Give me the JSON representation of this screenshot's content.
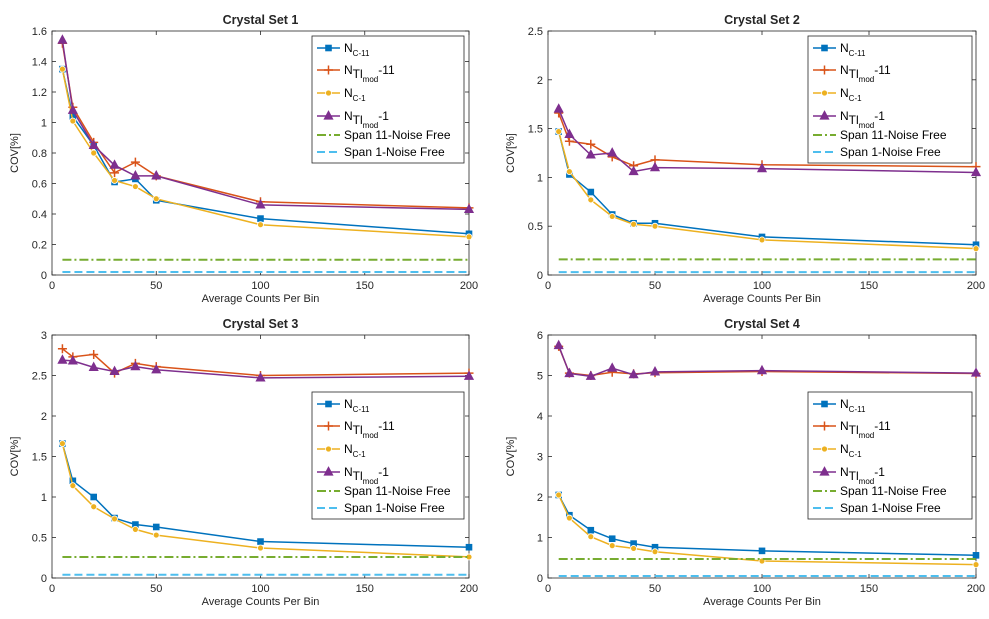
{
  "chart_data": [
    {
      "type": "line",
      "title": "Crystal Set 1",
      "xlabel": "Average Counts Per Bin",
      "ylabel": "COV[%]",
      "xlim": [
        0,
        200
      ],
      "ylim": [
        0,
        1.6
      ],
      "xticks": [
        "0",
        "50",
        "100",
        "150",
        "200"
      ],
      "yticks": [
        "0",
        "0.2",
        "0.4",
        "0.6",
        "0.8",
        "1",
        "1.2",
        "1.4",
        "1.6"
      ],
      "x": [
        5,
        10,
        20,
        30,
        40,
        50,
        100,
        200
      ],
      "legend_position": "top-right",
      "series": [
        {
          "id": "nc11",
          "name": "N_C-11",
          "values": [
            1.35,
            1.04,
            0.85,
            0.61,
            0.63,
            0.49,
            0.37,
            0.27
          ]
        },
        {
          "id": "ntl11",
          "name": "N_Tl_mod-11",
          "values": [
            1.52,
            1.1,
            0.87,
            0.67,
            0.74,
            0.65,
            0.48,
            0.44
          ]
        },
        {
          "id": "nc1",
          "name": "N_C-1",
          "values": [
            1.35,
            1.01,
            0.8,
            0.62,
            0.58,
            0.5,
            0.33,
            0.25
          ]
        },
        {
          "id": "ntl1",
          "name": "N_Tl_mod-1",
          "values": [
            1.54,
            1.08,
            0.85,
            0.72,
            0.65,
            0.65,
            0.46,
            0.43
          ]
        },
        {
          "id": "span11",
          "name": "Span 11-Noise Free",
          "style": "dashdot",
          "constant": 0.1
        },
        {
          "id": "span1",
          "name": "Span 1-Noise Free",
          "style": "dash",
          "constant": 0.02
        }
      ]
    },
    {
      "type": "line",
      "title": "Crystal Set 2",
      "xlabel": "Average Counts Per Bin",
      "ylabel": "COV[%]",
      "xlim": [
        0,
        200
      ],
      "ylim": [
        0,
        2.5
      ],
      "xticks": [
        "0",
        "50",
        "100",
        "150",
        "200"
      ],
      "yticks": [
        "0",
        "0.5",
        "1",
        "1.5",
        "2",
        "2.5"
      ],
      "x": [
        5,
        10,
        20,
        30,
        40,
        50,
        100,
        200
      ],
      "legend_position": "top-right",
      "series": [
        {
          "id": "nc11",
          "name": "N_C-11",
          "values": [
            1.47,
            1.03,
            0.85,
            0.62,
            0.53,
            0.53,
            0.39,
            0.31
          ]
        },
        {
          "id": "ntl11",
          "name": "N_Tl_mod-11",
          "values": [
            1.66,
            1.37,
            1.34,
            1.21,
            1.12,
            1.18,
            1.13,
            1.11
          ]
        },
        {
          "id": "nc1",
          "name": "N_C-1",
          "values": [
            1.47,
            1.06,
            0.77,
            0.6,
            0.52,
            0.5,
            0.36,
            0.27
          ]
        },
        {
          "id": "ntl1",
          "name": "N_Tl_mod-1",
          "values": [
            1.7,
            1.44,
            1.23,
            1.25,
            1.06,
            1.1,
            1.09,
            1.05
          ]
        },
        {
          "id": "span11",
          "name": "Span 11-Noise Free",
          "style": "dashdot",
          "constant": 0.16
        },
        {
          "id": "span1",
          "name": "Span 1-Noise Free",
          "style": "dash",
          "constant": 0.03
        }
      ]
    },
    {
      "type": "line",
      "title": "Crystal Set 3",
      "xlabel": "Average Counts Per Bin",
      "ylabel": "COV[%]",
      "xlim": [
        0,
        200
      ],
      "ylim": [
        0,
        3
      ],
      "xticks": [
        "0",
        "50",
        "100",
        "150",
        "200"
      ],
      "yticks": [
        "0",
        "0.5",
        "1",
        "1.5",
        "2",
        "2.5",
        "3"
      ],
      "x": [
        5,
        10,
        20,
        30,
        40,
        50,
        100,
        200
      ],
      "legend_position": "right",
      "series": [
        {
          "id": "nc11",
          "name": "N_C-11",
          "values": [
            1.66,
            1.2,
            1.0,
            0.74,
            0.66,
            0.63,
            0.45,
            0.38
          ]
        },
        {
          "id": "ntl11",
          "name": "N_Tl_mod-11",
          "values": [
            2.83,
            2.73,
            2.76,
            2.53,
            2.65,
            2.61,
            2.5,
            2.53
          ]
        },
        {
          "id": "nc1",
          "name": "N_C-1",
          "values": [
            1.66,
            1.14,
            0.88,
            0.73,
            0.6,
            0.53,
            0.37,
            0.26
          ]
        },
        {
          "id": "ntl1",
          "name": "N_Tl_mod-1",
          "values": [
            2.69,
            2.68,
            2.6,
            2.55,
            2.61,
            2.57,
            2.47,
            2.49
          ]
        },
        {
          "id": "span11",
          "name": "Span 11-Noise Free",
          "style": "dashdot",
          "constant": 0.26
        },
        {
          "id": "span1",
          "name": "Span 1-Noise Free",
          "style": "dash",
          "constant": 0.04
        }
      ]
    },
    {
      "type": "line",
      "title": "Crystal Set 4",
      "xlabel": "Average Counts Per Bin",
      "ylabel": "COV[%]",
      "xlim": [
        0,
        200
      ],
      "ylim": [
        0,
        6
      ],
      "xticks": [
        "0",
        "50",
        "100",
        "150",
        "200"
      ],
      "yticks": [
        "0",
        "1",
        "2",
        "3",
        "4",
        "5",
        "6"
      ],
      "x": [
        5,
        10,
        20,
        30,
        40,
        50,
        100,
        200
      ],
      "legend_position": "right",
      "series": [
        {
          "id": "nc11",
          "name": "N_C-11",
          "values": [
            2.05,
            1.55,
            1.18,
            0.97,
            0.85,
            0.76,
            0.67,
            0.56
          ]
        },
        {
          "id": "ntl11",
          "name": "N_Tl_mod-11",
          "values": [
            5.72,
            5.06,
            5.0,
            5.08,
            5.04,
            5.07,
            5.1,
            5.05
          ]
        },
        {
          "id": "nc1",
          "name": "N_C-1",
          "values": [
            2.05,
            1.48,
            1.02,
            0.8,
            0.73,
            0.65,
            0.42,
            0.33
          ]
        },
        {
          "id": "ntl1",
          "name": "N_Tl_mod-1",
          "values": [
            5.74,
            5.05,
            4.98,
            5.18,
            5.02,
            5.09,
            5.12,
            5.06
          ]
        },
        {
          "id": "span11",
          "name": "Span 11-Noise Free",
          "style": "dashdot",
          "constant": 0.47
        },
        {
          "id": "span1",
          "name": "Span 1-Noise Free",
          "style": "dash",
          "constant": 0.05
        }
      ]
    }
  ],
  "colors": {
    "nc11": "#0072BD",
    "ntl11": "#D95319",
    "nc1": "#EDB120",
    "ntl1": "#7E2F8E",
    "span11": "#77AC30",
    "span1": "#4DBEEE",
    "axis": "#262626"
  },
  "markers": {
    "nc11": "square",
    "ntl11": "plus",
    "nc1": "circle",
    "ntl1": "triangle"
  }
}
